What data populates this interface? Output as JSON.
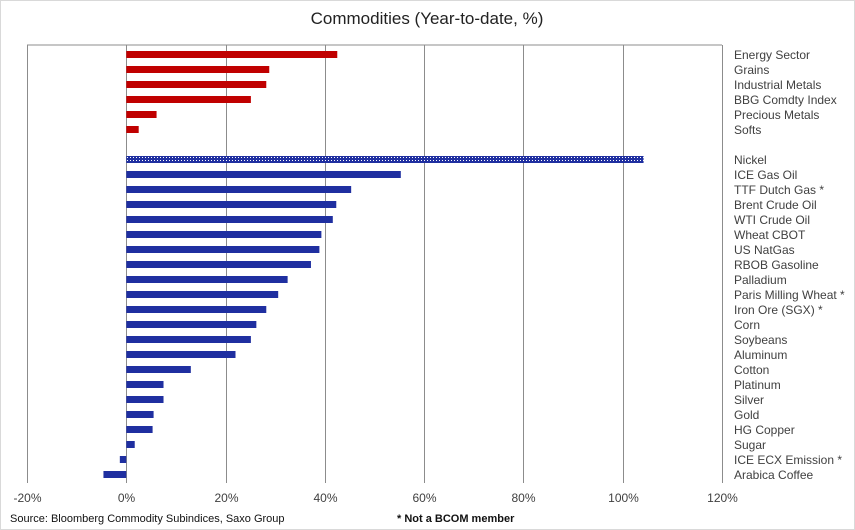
{
  "chart_data": {
    "type": "bar",
    "orientation": "horizontal",
    "title": "Commodities (Year-to-date, %)",
    "xlim": [
      -20,
      120
    ],
    "x_ticks": [
      "-20%",
      "0%",
      "20%",
      "40%",
      "60%",
      "80%",
      "100%",
      "120%"
    ],
    "grid": "vertical",
    "legend": "none",
    "colors": {
      "sector": "#c00000",
      "commodity": "#1f2fa0",
      "highlight_dots": "#ffffff",
      "grid": "#8c8c8c"
    },
    "groups": [
      {
        "name": "sectors",
        "color": "#c00000",
        "categories": [
          "Energy Sector",
          "Grains",
          "Industrial Metals",
          "BBG Comdty Index",
          "Precious Metals",
          "Softs"
        ],
        "values": [
          42.5,
          28.8,
          28.2,
          25.1,
          6.1,
          2.5
        ]
      },
      {
        "name": "commodities",
        "color": "#1f2fa0",
        "categories": [
          "Nickel",
          "ICE Gas Oil",
          "TTF Dutch Gas *",
          "Brent Crude Oil",
          "WTI Crude Oil",
          "Wheat CBOT",
          "US NatGas",
          "RBOB Gasoline",
          "Palladium",
          "Paris Milling Wheat *",
          "Iron Ore (SGX) *",
          "Corn",
          "Soybeans",
          "Aluminum",
          "Cotton",
          "Platinum",
          "Silver",
          "Gold",
          "HG Copper",
          "Sugar",
          "ICE ECX Emission *",
          "Arabica Coffee"
        ],
        "values": [
          104.2,
          55.3,
          45.3,
          42.3,
          41.6,
          39.3,
          38.9,
          37.2,
          32.5,
          30.6,
          28.2,
          26.2,
          25.1,
          22.0,
          13.0,
          7.5,
          7.5,
          5.5,
          5.3,
          1.7,
          -1.3,
          -4.6
        ],
        "highlighted": [
          "Nickel"
        ]
      }
    ]
  },
  "footer": {
    "source": "Source: Bloomberg Commodity Subindices, Saxo Group",
    "note": "* Not a BCOM member"
  }
}
